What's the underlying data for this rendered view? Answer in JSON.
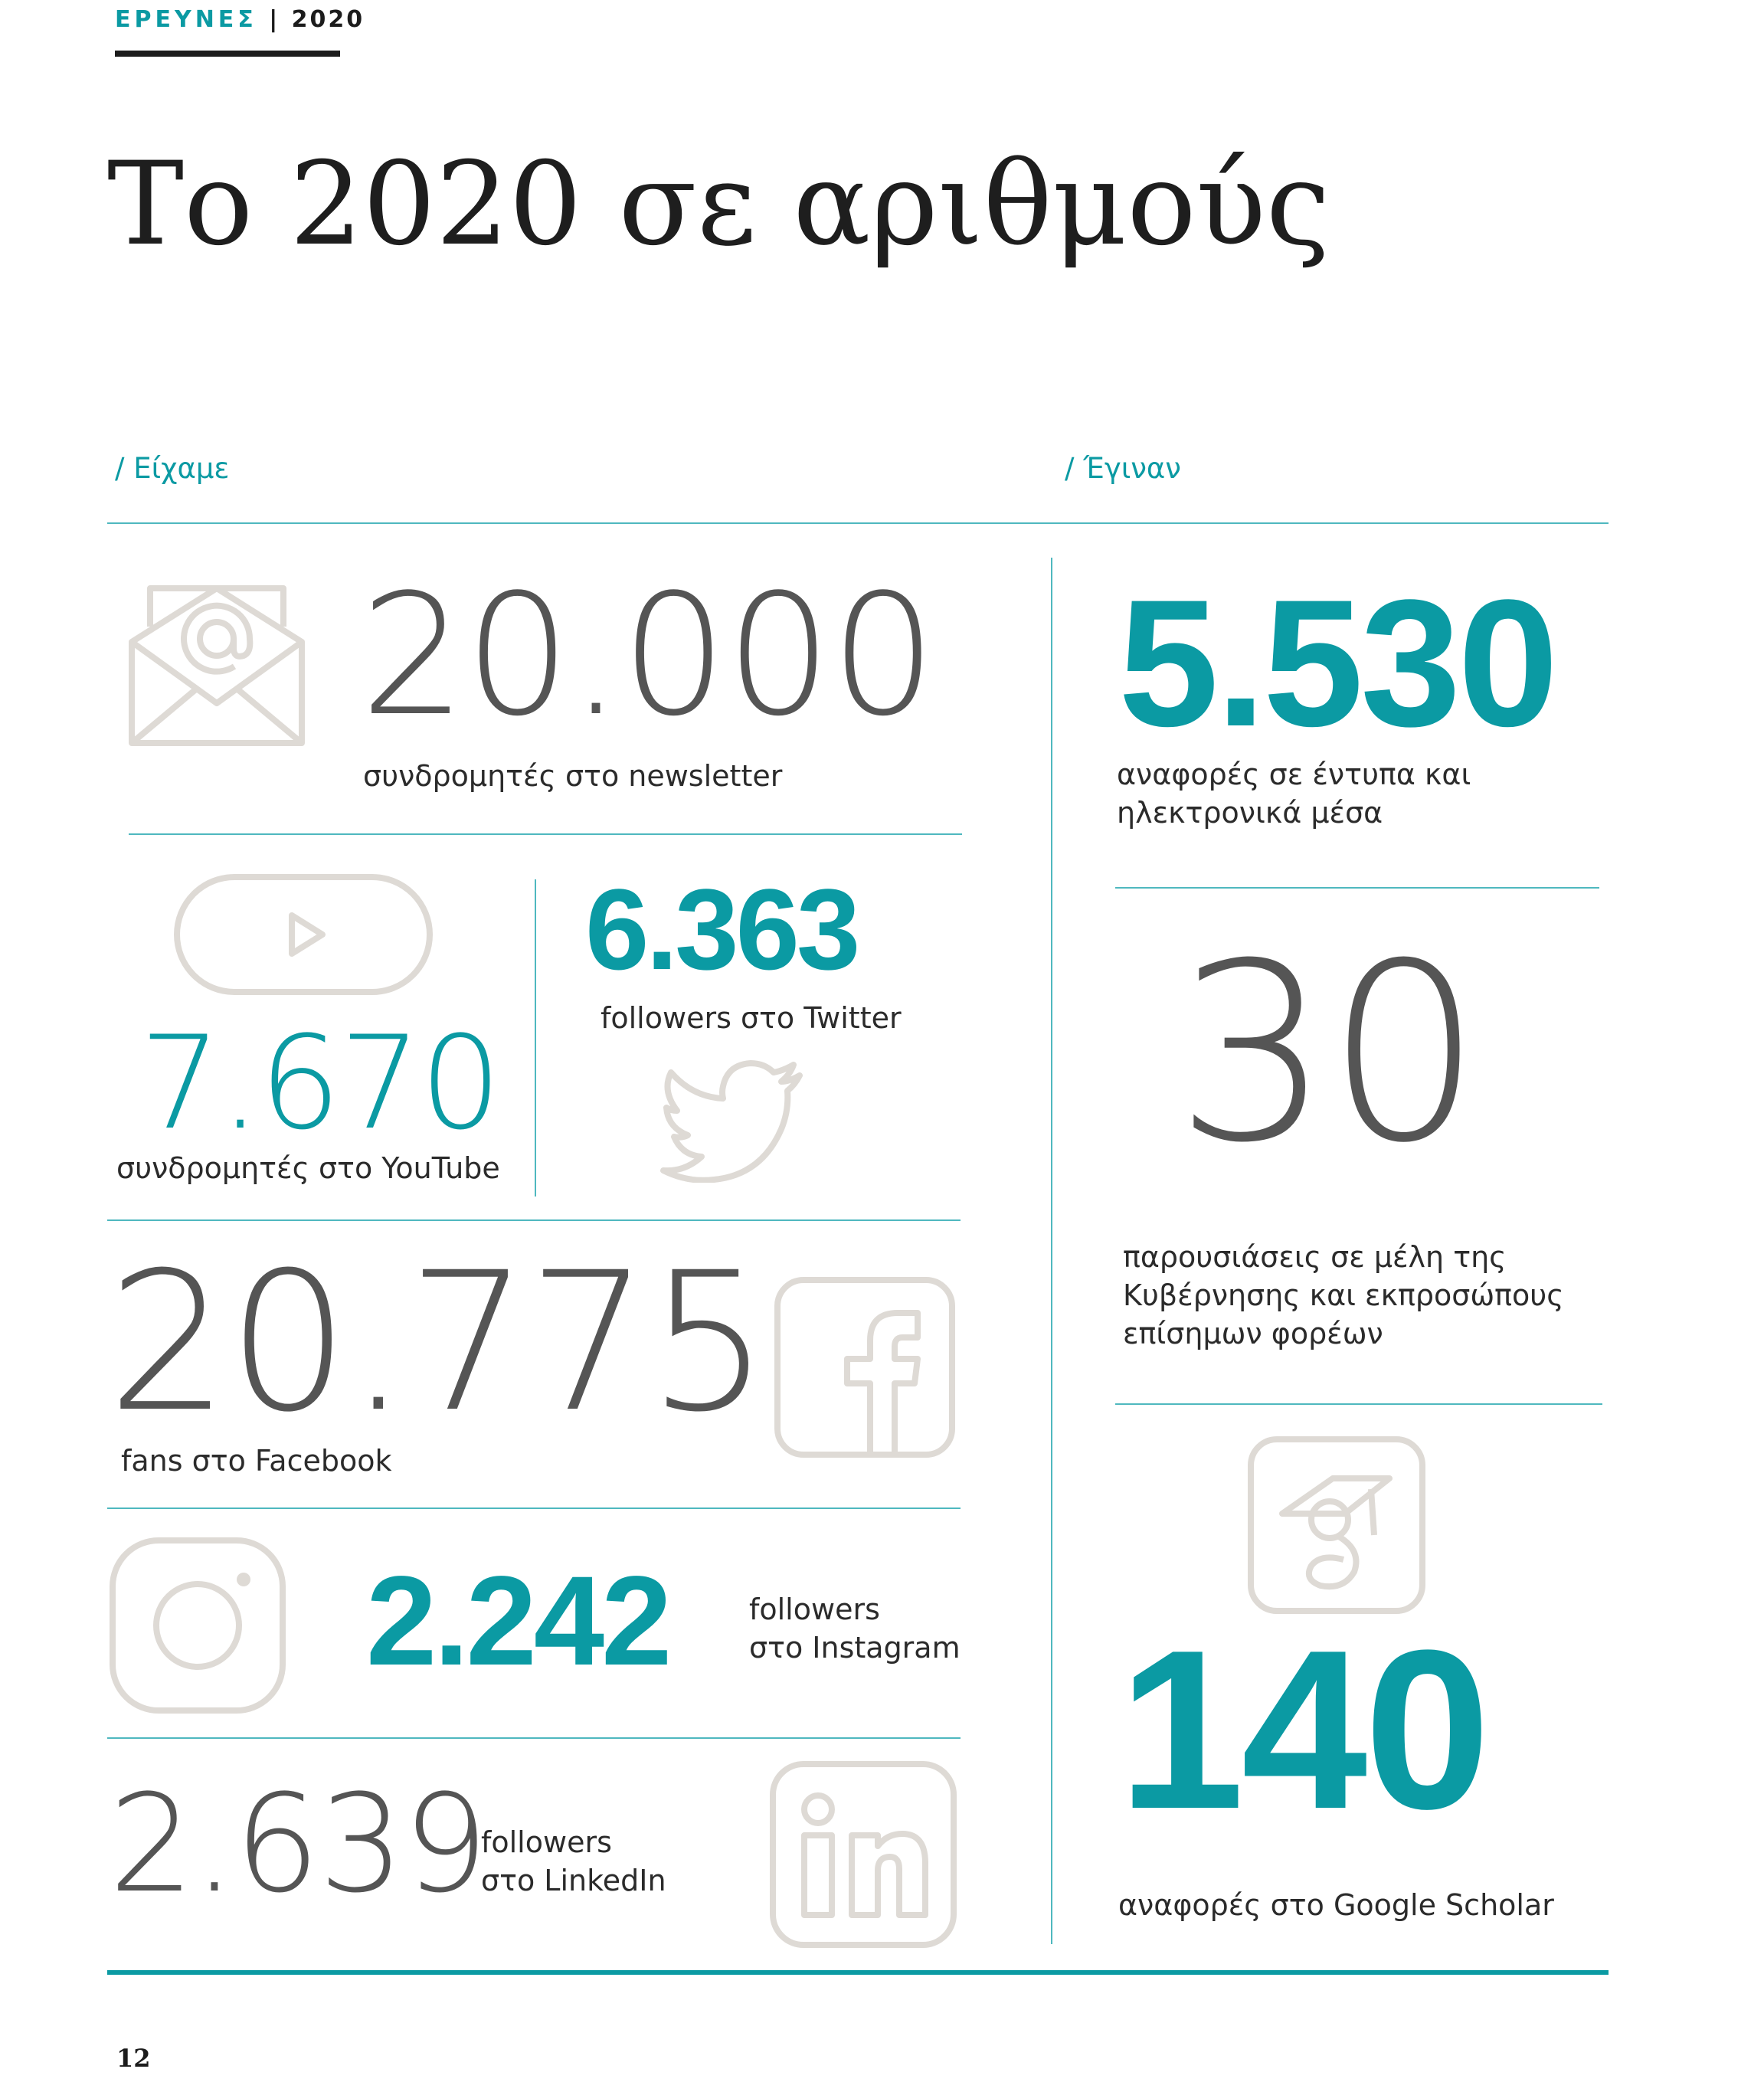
{
  "header": {
    "section": "ΕΡΕΥΝΕΣ",
    "separator": "|",
    "year": "2020"
  },
  "title": "Το 2020 σε αριθμούς",
  "left_label": "/ Είχαμε",
  "right_label": "/ Έγιναν",
  "stats": {
    "newsletter": {
      "value": "20.000",
      "caption": "συνδρομητές στο newsletter",
      "icon": "envelope-at-icon"
    },
    "youtube": {
      "value": "7.670",
      "caption": "συνδρομητές στο YouTube",
      "icon": "youtube-play-icon"
    },
    "twitter": {
      "value": "6.363",
      "caption": "followers στο Twitter",
      "icon": "twitter-bird-icon"
    },
    "facebook": {
      "value": "20.775",
      "caption": "fans στο Facebook",
      "icon": "facebook-icon"
    },
    "instagram": {
      "value": "2.242",
      "caption_line1": "followers",
      "caption_line2": "στο Instagram",
      "icon": "instagram-icon"
    },
    "linkedin": {
      "value": "2.639",
      "caption_line1": "followers",
      "caption_line2": "στο LinkedIn",
      "icon": "linkedin-icon"
    },
    "media": {
      "value": "5.530",
      "caption_line1": "αναφορές σε έντυπα και",
      "caption_line2": "ηλεκτρονικά μέσα"
    },
    "presentations": {
      "value": "30",
      "caption_line1": "παρουσιάσεις σε μέλη της",
      "caption_line2": "Κυβέρνησης και εκπροσώπους",
      "caption_line3": "επίσημων φορέων"
    },
    "scholar": {
      "value": "140",
      "caption": "αναφορές στο Google Scholar",
      "icon": "google-scholar-icon"
    }
  },
  "page_number": "12",
  "colors": {
    "accent": "#0b9aa3",
    "number_grey": "#555555",
    "icon_grey": "#dedad5",
    "rule": "#4fb8bf",
    "text": "#2b2b2b"
  }
}
